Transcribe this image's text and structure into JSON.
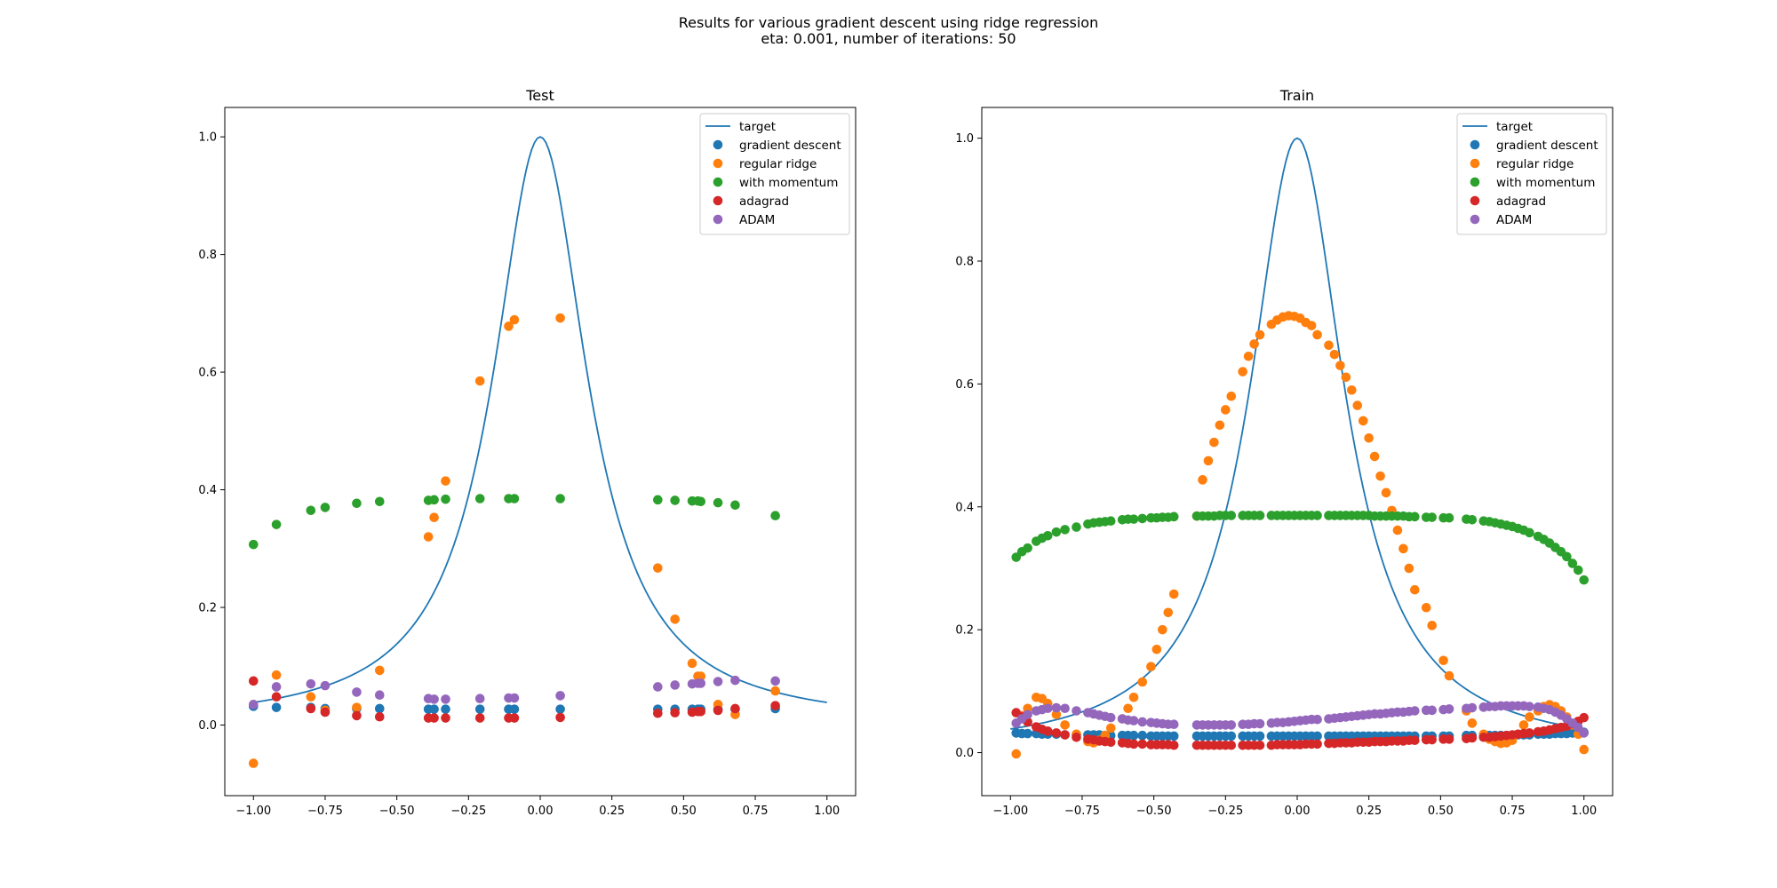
{
  "figure": {
    "title_line1": "Results for various gradient descent using ridge regression",
    "title_line2": "eta: 0.001, number of iterations: 50"
  },
  "colors": {
    "target": "#1f77b4",
    "gradient descent": "#1f77b4",
    "regular ridge": "#ff7f0e",
    "with momentum": "#2ca02c",
    "adagrad": "#d62728",
    "ADAM": "#9467bd"
  },
  "chart_data": [
    {
      "type": "scatter",
      "title": "Test",
      "xlim": [
        -1.1,
        1.1
      ],
      "ylim": [
        -0.12,
        1.05
      ],
      "xticks": [
        -1.0,
        -0.75,
        -0.5,
        -0.25,
        0.0,
        0.25,
        0.5,
        0.75,
        1.0
      ],
      "xtick_labels": [
        "−1.00",
        "−0.75",
        "−0.50",
        "−0.25",
        "0.00",
        "0.25",
        "0.50",
        "0.75",
        "1.00"
      ],
      "yticks": [
        0.0,
        0.2,
        0.4,
        0.6,
        0.8,
        1.0
      ],
      "ytick_labels": [
        "0.0",
        "0.2",
        "0.4",
        "0.6",
        "0.8",
        "1.0"
      ],
      "grid": false,
      "legend": "top-right",
      "target_line": {
        "name": "target",
        "function": "1/(1+25x^2)",
        "x_range": [
          -1.0,
          1.0
        ]
      },
      "x": [
        -1.0,
        -0.92,
        -0.8,
        -0.75,
        -0.64,
        -0.56,
        -0.39,
        -0.37,
        -0.33,
        -0.21,
        -0.11,
        -0.09,
        0.07,
        0.41,
        0.47,
        0.53,
        0.55,
        0.56,
        0.62,
        0.68,
        0.82
      ],
      "series": [
        {
          "name": "gradient descent",
          "values": [
            0.032,
            0.03,
            0.03,
            0.028,
            0.028,
            0.028,
            0.027,
            0.027,
            0.027,
            0.027,
            0.027,
            0.027,
            0.027,
            0.027,
            0.027,
            0.027,
            0.027,
            0.027,
            0.027,
            0.027,
            0.028
          ]
        },
        {
          "name": "regular ridge",
          "values": [
            -0.065,
            0.085,
            0.048,
            0.025,
            0.03,
            0.093,
            0.32,
            0.353,
            0.415,
            0.585,
            0.678,
            0.689,
            0.692,
            0.267,
            0.18,
            0.105,
            0.083,
            0.083,
            0.035,
            0.018,
            0.058
          ]
        },
        {
          "name": "with momentum",
          "values": [
            0.307,
            0.341,
            0.365,
            0.37,
            0.377,
            0.38,
            0.382,
            0.383,
            0.384,
            0.385,
            0.385,
            0.385,
            0.385,
            0.383,
            0.382,
            0.381,
            0.381,
            0.38,
            0.378,
            0.374,
            0.356
          ]
        },
        {
          "name": "adagrad",
          "values": [
            0.075,
            0.048,
            0.028,
            0.022,
            0.016,
            0.014,
            0.012,
            0.012,
            0.012,
            0.012,
            0.012,
            0.012,
            0.013,
            0.02,
            0.021,
            0.022,
            0.023,
            0.023,
            0.025,
            0.028,
            0.033
          ]
        },
        {
          "name": "ADAM",
          "values": [
            0.035,
            0.065,
            0.07,
            0.067,
            0.056,
            0.051,
            0.045,
            0.044,
            0.044,
            0.045,
            0.046,
            0.046,
            0.05,
            0.065,
            0.068,
            0.07,
            0.071,
            0.071,
            0.074,
            0.076,
            0.075
          ]
        }
      ]
    },
    {
      "type": "scatter",
      "title": "Train",
      "xlim": [
        -1.1,
        1.1
      ],
      "ylim": [
        -0.07,
        1.05
      ],
      "xticks": [
        -1.0,
        -0.75,
        -0.5,
        -0.25,
        0.0,
        0.25,
        0.5,
        0.75,
        1.0
      ],
      "xtick_labels": [
        "−1.00",
        "−0.75",
        "−0.50",
        "−0.25",
        "0.00",
        "0.25",
        "0.50",
        "0.75",
        "1.00"
      ],
      "yticks": [
        0.0,
        0.2,
        0.4,
        0.6,
        0.8,
        1.0
      ],
      "ytick_labels": [
        "0.0",
        "0.2",
        "0.4",
        "0.6",
        "0.8",
        "1.0"
      ],
      "grid": false,
      "legend": "top-right",
      "target_line": {
        "name": "target",
        "function": "1/(1+25x^2)",
        "x_range": [
          -1.0,
          1.0
        ]
      },
      "x": [
        -0.98,
        -0.96,
        -0.94,
        -0.91,
        -0.89,
        -0.87,
        -0.84,
        -0.81,
        -0.77,
        -0.73,
        -0.71,
        -0.69,
        -0.67,
        -0.65,
        -0.61,
        -0.59,
        -0.57,
        -0.54,
        -0.51,
        -0.49,
        -0.47,
        -0.45,
        -0.43,
        -0.35,
        -0.33,
        -0.31,
        -0.29,
        -0.27,
        -0.25,
        -0.23,
        -0.19,
        -0.17,
        -0.15,
        -0.13,
        -0.09,
        -0.07,
        -0.05,
        -0.03,
        -0.01,
        0.01,
        0.03,
        0.05,
        0.07,
        0.11,
        0.13,
        0.15,
        0.17,
        0.19,
        0.21,
        0.23,
        0.25,
        0.27,
        0.29,
        0.31,
        0.33,
        0.35,
        0.37,
        0.39,
        0.41,
        0.45,
        0.47,
        0.51,
        0.53,
        0.59,
        0.61,
        0.65,
        0.67,
        0.69,
        0.71,
        0.73,
        0.75,
        0.77,
        0.79,
        0.81,
        0.84,
        0.86,
        0.88,
        0.9,
        0.92,
        0.94,
        0.96,
        0.98,
        1.0
      ],
      "series": [
        {
          "name": "gradient descent",
          "values": [
            0.032,
            0.031,
            0.031,
            0.031,
            0.03,
            0.03,
            0.03,
            0.029,
            0.029,
            0.029,
            0.029,
            0.029,
            0.028,
            0.028,
            0.028,
            0.028,
            0.028,
            0.028,
            0.027,
            0.027,
            0.027,
            0.027,
            0.027,
            0.027,
            0.027,
            0.027,
            0.027,
            0.027,
            0.027,
            0.027,
            0.027,
            0.027,
            0.027,
            0.027,
            0.027,
            0.027,
            0.027,
            0.027,
            0.027,
            0.027,
            0.027,
            0.027,
            0.027,
            0.027,
            0.027,
            0.027,
            0.027,
            0.027,
            0.027,
            0.027,
            0.027,
            0.027,
            0.027,
            0.027,
            0.027,
            0.027,
            0.027,
            0.027,
            0.027,
            0.027,
            0.027,
            0.027,
            0.027,
            0.028,
            0.028,
            0.028,
            0.028,
            0.028,
            0.028,
            0.028,
            0.028,
            0.029,
            0.029,
            0.029,
            0.03,
            0.03,
            0.03,
            0.031,
            0.031,
            0.031,
            0.032,
            0.032,
            0.033
          ]
        },
        {
          "name": "regular ridge",
          "values": [
            -0.002,
            0.06,
            0.072,
            0.09,
            0.088,
            0.08,
            0.062,
            0.045,
            0.03,
            0.018,
            0.016,
            0.02,
            0.028,
            0.04,
            0.055,
            0.072,
            0.09,
            0.115,
            0.14,
            0.168,
            0.2,
            0.228,
            0.258,
            0.385,
            0.444,
            0.475,
            0.505,
            0.533,
            0.558,
            0.58,
            0.62,
            0.645,
            0.665,
            0.68,
            0.697,
            0.704,
            0.709,
            0.711,
            0.71,
            0.707,
            0.7,
            0.695,
            0.68,
            0.663,
            0.648,
            0.63,
            0.611,
            0.59,
            0.565,
            0.54,
            0.512,
            0.482,
            0.45,
            0.423,
            0.394,
            0.362,
            0.332,
            0.3,
            0.265,
            0.236,
            0.207,
            0.15,
            0.125,
            0.068,
            0.048,
            0.03,
            0.022,
            0.018,
            0.015,
            0.016,
            0.02,
            0.03,
            0.045,
            0.058,
            0.068,
            0.075,
            0.078,
            0.075,
            0.068,
            0.058,
            0.045,
            0.03,
            0.005
          ]
        },
        {
          "name": "with momentum",
          "values": [
            0.318,
            0.327,
            0.333,
            0.344,
            0.349,
            0.353,
            0.359,
            0.363,
            0.367,
            0.372,
            0.374,
            0.375,
            0.376,
            0.377,
            0.379,
            0.38,
            0.38,
            0.381,
            0.382,
            0.382,
            0.383,
            0.383,
            0.384,
            0.385,
            0.385,
            0.385,
            0.385,
            0.386,
            0.386,
            0.386,
            0.386,
            0.386,
            0.386,
            0.386,
            0.386,
            0.386,
            0.386,
            0.386,
            0.386,
            0.386,
            0.386,
            0.386,
            0.386,
            0.386,
            0.386,
            0.386,
            0.386,
            0.386,
            0.386,
            0.386,
            0.386,
            0.385,
            0.385,
            0.385,
            0.385,
            0.385,
            0.385,
            0.384,
            0.384,
            0.383,
            0.383,
            0.382,
            0.382,
            0.38,
            0.379,
            0.377,
            0.376,
            0.374,
            0.372,
            0.37,
            0.368,
            0.365,
            0.362,
            0.358,
            0.352,
            0.347,
            0.341,
            0.334,
            0.327,
            0.319,
            0.308,
            0.297,
            0.281
          ]
        },
        {
          "name": "adagrad",
          "values": [
            0.065,
            0.058,
            0.05,
            0.042,
            0.038,
            0.035,
            0.032,
            0.029,
            0.025,
            0.022,
            0.021,
            0.019,
            0.018,
            0.017,
            0.016,
            0.015,
            0.014,
            0.014,
            0.013,
            0.013,
            0.013,
            0.013,
            0.012,
            0.012,
            0.012,
            0.012,
            0.012,
            0.012,
            0.012,
            0.012,
            0.012,
            0.012,
            0.012,
            0.012,
            0.012,
            0.013,
            0.013,
            0.013,
            0.013,
            0.013,
            0.014,
            0.014,
            0.014,
            0.015,
            0.015,
            0.016,
            0.016,
            0.016,
            0.017,
            0.017,
            0.017,
            0.018,
            0.018,
            0.018,
            0.019,
            0.019,
            0.019,
            0.02,
            0.02,
            0.021,
            0.021,
            0.022,
            0.022,
            0.023,
            0.024,
            0.025,
            0.025,
            0.026,
            0.027,
            0.028,
            0.029,
            0.03,
            0.031,
            0.032,
            0.034,
            0.035,
            0.037,
            0.039,
            0.041,
            0.043,
            0.047,
            0.051,
            0.057
          ]
        },
        {
          "name": "ADAM",
          "values": [
            0.048,
            0.055,
            0.062,
            0.068,
            0.07,
            0.072,
            0.073,
            0.072,
            0.068,
            0.065,
            0.063,
            0.061,
            0.059,
            0.057,
            0.055,
            0.053,
            0.052,
            0.05,
            0.049,
            0.048,
            0.047,
            0.046,
            0.046,
            0.045,
            0.045,
            0.045,
            0.045,
            0.045,
            0.045,
            0.045,
            0.046,
            0.046,
            0.047,
            0.047,
            0.048,
            0.049,
            0.049,
            0.05,
            0.051,
            0.052,
            0.053,
            0.054,
            0.054,
            0.055,
            0.056,
            0.057,
            0.058,
            0.059,
            0.06,
            0.061,
            0.062,
            0.063,
            0.063,
            0.064,
            0.065,
            0.066,
            0.066,
            0.067,
            0.068,
            0.069,
            0.069,
            0.07,
            0.071,
            0.072,
            0.073,
            0.074,
            0.075,
            0.075,
            0.076,
            0.076,
            0.076,
            0.076,
            0.076,
            0.075,
            0.074,
            0.072,
            0.07,
            0.066,
            0.061,
            0.055,
            0.048,
            0.041,
            0.032
          ]
        }
      ]
    }
  ]
}
